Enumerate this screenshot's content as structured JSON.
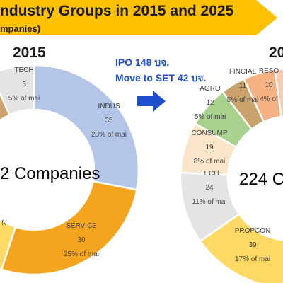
{
  "header": {
    "title": "ndustry Groups in 2015 and 2025",
    "subtitle": "mpanies)",
    "banner_color": "#ffc000"
  },
  "notes": {
    "ipo": "IPO 148 บจ.",
    "move": "Move to SET 42 บจ."
  },
  "arrow_color": "#1f4fcf",
  "chart_data": [
    {
      "type": "pie",
      "year_label": "2015",
      "center_text": "2 Companies",
      "slices": [
        {
          "name": "INDUS",
          "value": 35,
          "pct": "28% of mai",
          "color": "#b4c6e7"
        },
        {
          "name": "SERVICE",
          "value": 30,
          "pct": "25% of mai",
          "color": "#f5a41e"
        },
        {
          "name": "N",
          "value": null,
          "pct": "",
          "color": "#ffd966"
        },
        {
          "name": "",
          "value": null,
          "pct": "",
          "color": "#a9d18e"
        },
        {
          "name": "",
          "value": null,
          "pct": "",
          "color": "#c9a36b"
        },
        {
          "name": "TECH",
          "value": 5,
          "pct": "5% of mai",
          "color": "#e4e4e4"
        }
      ]
    },
    {
      "type": "pie",
      "year_label": "20",
      "center_text": "224 Co",
      "slices": [
        {
          "name": "RESO",
          "value": 10,
          "pct": "4% of",
          "color": "#f4b183"
        },
        {
          "name": "",
          "value": null,
          "pct": "",
          "color": "#f8cbad"
        },
        {
          "name": "PROPCON",
          "value": 39,
          "pct": "17% of mai",
          "color": "#ffd966"
        },
        {
          "name": "TECH",
          "value": 24,
          "pct": "11% of mai",
          "color": "#e4e4e4"
        },
        {
          "name": "CONSUMP",
          "value": 19,
          "pct": "8% of mai",
          "color": "#fbe5c8"
        },
        {
          "name": "AGRO",
          "value": 12,
          "pct": "5% of mai",
          "color": "#a9d18e"
        },
        {
          "name": "FINCIAL",
          "value": 11,
          "pct": "5% of mai",
          "color": "#c9a36b"
        }
      ]
    }
  ]
}
